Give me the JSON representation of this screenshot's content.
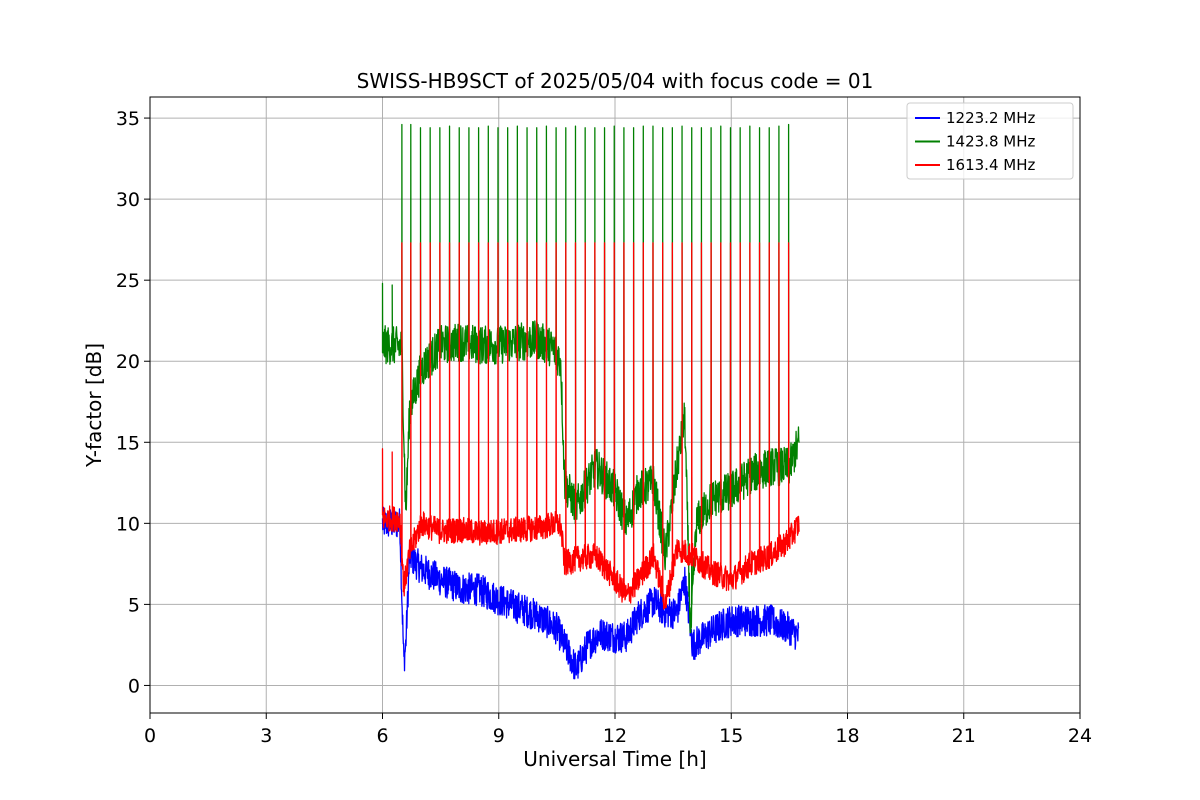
{
  "chart_data": {
    "type": "line",
    "title": "SWISS-HB9SCT of 2025/05/04 with focus code = 01",
    "xlabel": "Universal Time [h]",
    "ylabel": "Y-factor [dB]",
    "xlim": [
      0,
      24
    ],
    "ylim": [
      -1.7,
      36.3
    ],
    "x_ticks": [
      0,
      3,
      6,
      9,
      12,
      15,
      18,
      21,
      24
    ],
    "y_ticks": [
      0,
      5,
      10,
      15,
      20,
      25,
      30,
      35
    ],
    "grid": true,
    "legend_position": "top-right",
    "series": [
      {
        "name": "1223.2 MHz",
        "color": "#0000ff",
        "baseline": [
          [
            6.0,
            10.0
          ],
          [
            6.45,
            10.0
          ],
          [
            6.5,
            5.5
          ],
          [
            6.55,
            1.5
          ],
          [
            6.6,
            2.5
          ],
          [
            6.7,
            8.0
          ],
          [
            7.0,
            7.2
          ],
          [
            7.5,
            6.5
          ],
          [
            8.0,
            6.0
          ],
          [
            8.5,
            5.9
          ],
          [
            9.0,
            5.3
          ],
          [
            9.5,
            4.8
          ],
          [
            10.0,
            4.3
          ],
          [
            10.5,
            3.5
          ],
          [
            10.8,
            2.0
          ],
          [
            11.0,
            1.0
          ],
          [
            11.3,
            2.5
          ],
          [
            11.6,
            3.2
          ],
          [
            12.0,
            3.0
          ],
          [
            12.3,
            3.0
          ],
          [
            12.6,
            4.3
          ],
          [
            13.0,
            5.2
          ],
          [
            13.3,
            4.5
          ],
          [
            13.6,
            4.5
          ],
          [
            13.8,
            6.5
          ],
          [
            14.0,
            2.5
          ],
          [
            14.3,
            3.0
          ],
          [
            14.8,
            3.8
          ],
          [
            15.0,
            4.0
          ],
          [
            15.5,
            4.0
          ],
          [
            16.0,
            4.0
          ],
          [
            16.5,
            3.5
          ],
          [
            16.75,
            3.0
          ]
        ],
        "noise": 1.0,
        "spikes": [],
        "spike_heights": []
      },
      {
        "name": "1423.8 MHz",
        "color": "#008000",
        "baseline": [
          [
            6.0,
            21.0
          ],
          [
            6.1,
            21.0
          ],
          [
            6.5,
            20.9
          ],
          [
            6.6,
            10.5
          ],
          [
            6.7,
            17.0
          ],
          [
            7.0,
            19.5
          ],
          [
            7.5,
            21.0
          ],
          [
            8.0,
            21.2
          ],
          [
            8.5,
            21.0
          ],
          [
            9.0,
            21.0
          ],
          [
            9.5,
            21.2
          ],
          [
            10.0,
            21.3
          ],
          [
            10.4,
            20.8
          ],
          [
            10.6,
            20.0
          ],
          [
            10.7,
            12.5
          ],
          [
            11.0,
            11.0
          ],
          [
            11.5,
            13.5
          ],
          [
            12.0,
            12.0
          ],
          [
            12.3,
            10.0
          ],
          [
            12.6,
            12.0
          ],
          [
            13.0,
            12.5
          ],
          [
            13.3,
            8.0
          ],
          [
            13.6,
            13.5
          ],
          [
            13.8,
            16.5
          ],
          [
            13.95,
            3.0
          ],
          [
            14.1,
            10.0
          ],
          [
            14.5,
            11.5
          ],
          [
            15.0,
            12.0
          ],
          [
            15.5,
            13.0
          ],
          [
            16.0,
            13.5
          ],
          [
            16.5,
            13.5
          ],
          [
            16.75,
            15.0
          ]
        ],
        "noise": 1.2,
        "spikes": [
          6.0,
          6.25,
          6.5,
          6.73,
          6.98,
          7.23,
          7.48,
          7.73,
          7.98,
          8.23,
          8.48,
          8.73,
          8.98,
          9.23,
          9.48,
          9.73,
          9.98,
          10.23,
          10.48,
          10.73,
          10.98,
          11.23,
          11.48,
          11.73,
          11.98,
          12.23,
          12.48,
          12.73,
          12.98,
          13.23,
          13.48,
          13.73,
          13.98,
          14.23,
          14.48,
          14.73,
          14.98,
          15.23,
          15.48,
          15.73,
          15.98,
          16.23,
          16.48
        ],
        "spike_heights": [
          24.8,
          24.7,
          34.6,
          34.6,
          34.4,
          34.4,
          34.4,
          34.5,
          34.4,
          34.4,
          34.4,
          34.5,
          34.4,
          34.4,
          34.5,
          34.4,
          34.4,
          34.5,
          34.4,
          34.4,
          34.5,
          34.4,
          34.4,
          34.4,
          34.5,
          34.4,
          34.4,
          34.5,
          34.5,
          34.4,
          34.4,
          34.5,
          34.4,
          34.4,
          34.4,
          34.5,
          34.4,
          34.4,
          34.5,
          34.4,
          34.4,
          34.5,
          34.6
        ]
      },
      {
        "name": "1613.4 MHz",
        "color": "#ff0000",
        "baseline": [
          [
            6.0,
            10.3
          ],
          [
            6.45,
            10.3
          ],
          [
            6.55,
            6.0
          ],
          [
            6.7,
            8.2
          ],
          [
            7.0,
            10.0
          ],
          [
            7.5,
            9.5
          ],
          [
            8.0,
            9.6
          ],
          [
            8.5,
            9.4
          ],
          [
            9.0,
            9.5
          ],
          [
            9.5,
            9.6
          ],
          [
            10.0,
            9.7
          ],
          [
            10.5,
            10.0
          ],
          [
            10.6,
            9.8
          ],
          [
            10.7,
            7.5
          ],
          [
            11.0,
            7.8
          ],
          [
            11.5,
            8.0
          ],
          [
            12.0,
            6.5
          ],
          [
            12.3,
            5.5
          ],
          [
            12.6,
            6.5
          ],
          [
            13.0,
            8.0
          ],
          [
            13.3,
            5.0
          ],
          [
            13.6,
            8.5
          ],
          [
            14.0,
            8.0
          ],
          [
            14.5,
            7.0
          ],
          [
            15.0,
            6.5
          ],
          [
            15.5,
            7.5
          ],
          [
            16.0,
            8.0
          ],
          [
            16.5,
            9.0
          ],
          [
            16.75,
            10.0
          ]
        ],
        "noise": 0.8,
        "spikes": [
          6.0,
          6.25,
          6.5,
          6.73,
          6.98,
          7.23,
          7.48,
          7.73,
          7.98,
          8.23,
          8.48,
          8.73,
          8.98,
          9.23,
          9.48,
          9.73,
          9.98,
          10.23,
          10.48,
          10.73,
          10.98,
          11.23,
          11.48,
          11.73,
          11.98,
          12.23,
          12.48,
          12.73,
          12.98,
          13.23,
          13.48,
          13.73,
          13.98,
          14.23,
          14.48,
          14.73,
          14.98,
          15.23,
          15.48,
          15.73,
          15.98,
          16.23,
          16.48
        ],
        "spike_heights": [
          14.6,
          14.4,
          27.3,
          27.3,
          27.3,
          27.3,
          27.3,
          27.3,
          27.3,
          27.3,
          27.3,
          27.3,
          27.3,
          27.3,
          27.3,
          27.3,
          27.3,
          27.3,
          27.3,
          27.3,
          27.3,
          27.3,
          27.3,
          27.3,
          27.3,
          27.3,
          27.3,
          27.3,
          27.3,
          27.3,
          27.3,
          27.3,
          27.3,
          27.3,
          27.3,
          27.3,
          27.3,
          27.3,
          27.3,
          27.3,
          27.3,
          27.3,
          27.3
        ]
      }
    ]
  }
}
